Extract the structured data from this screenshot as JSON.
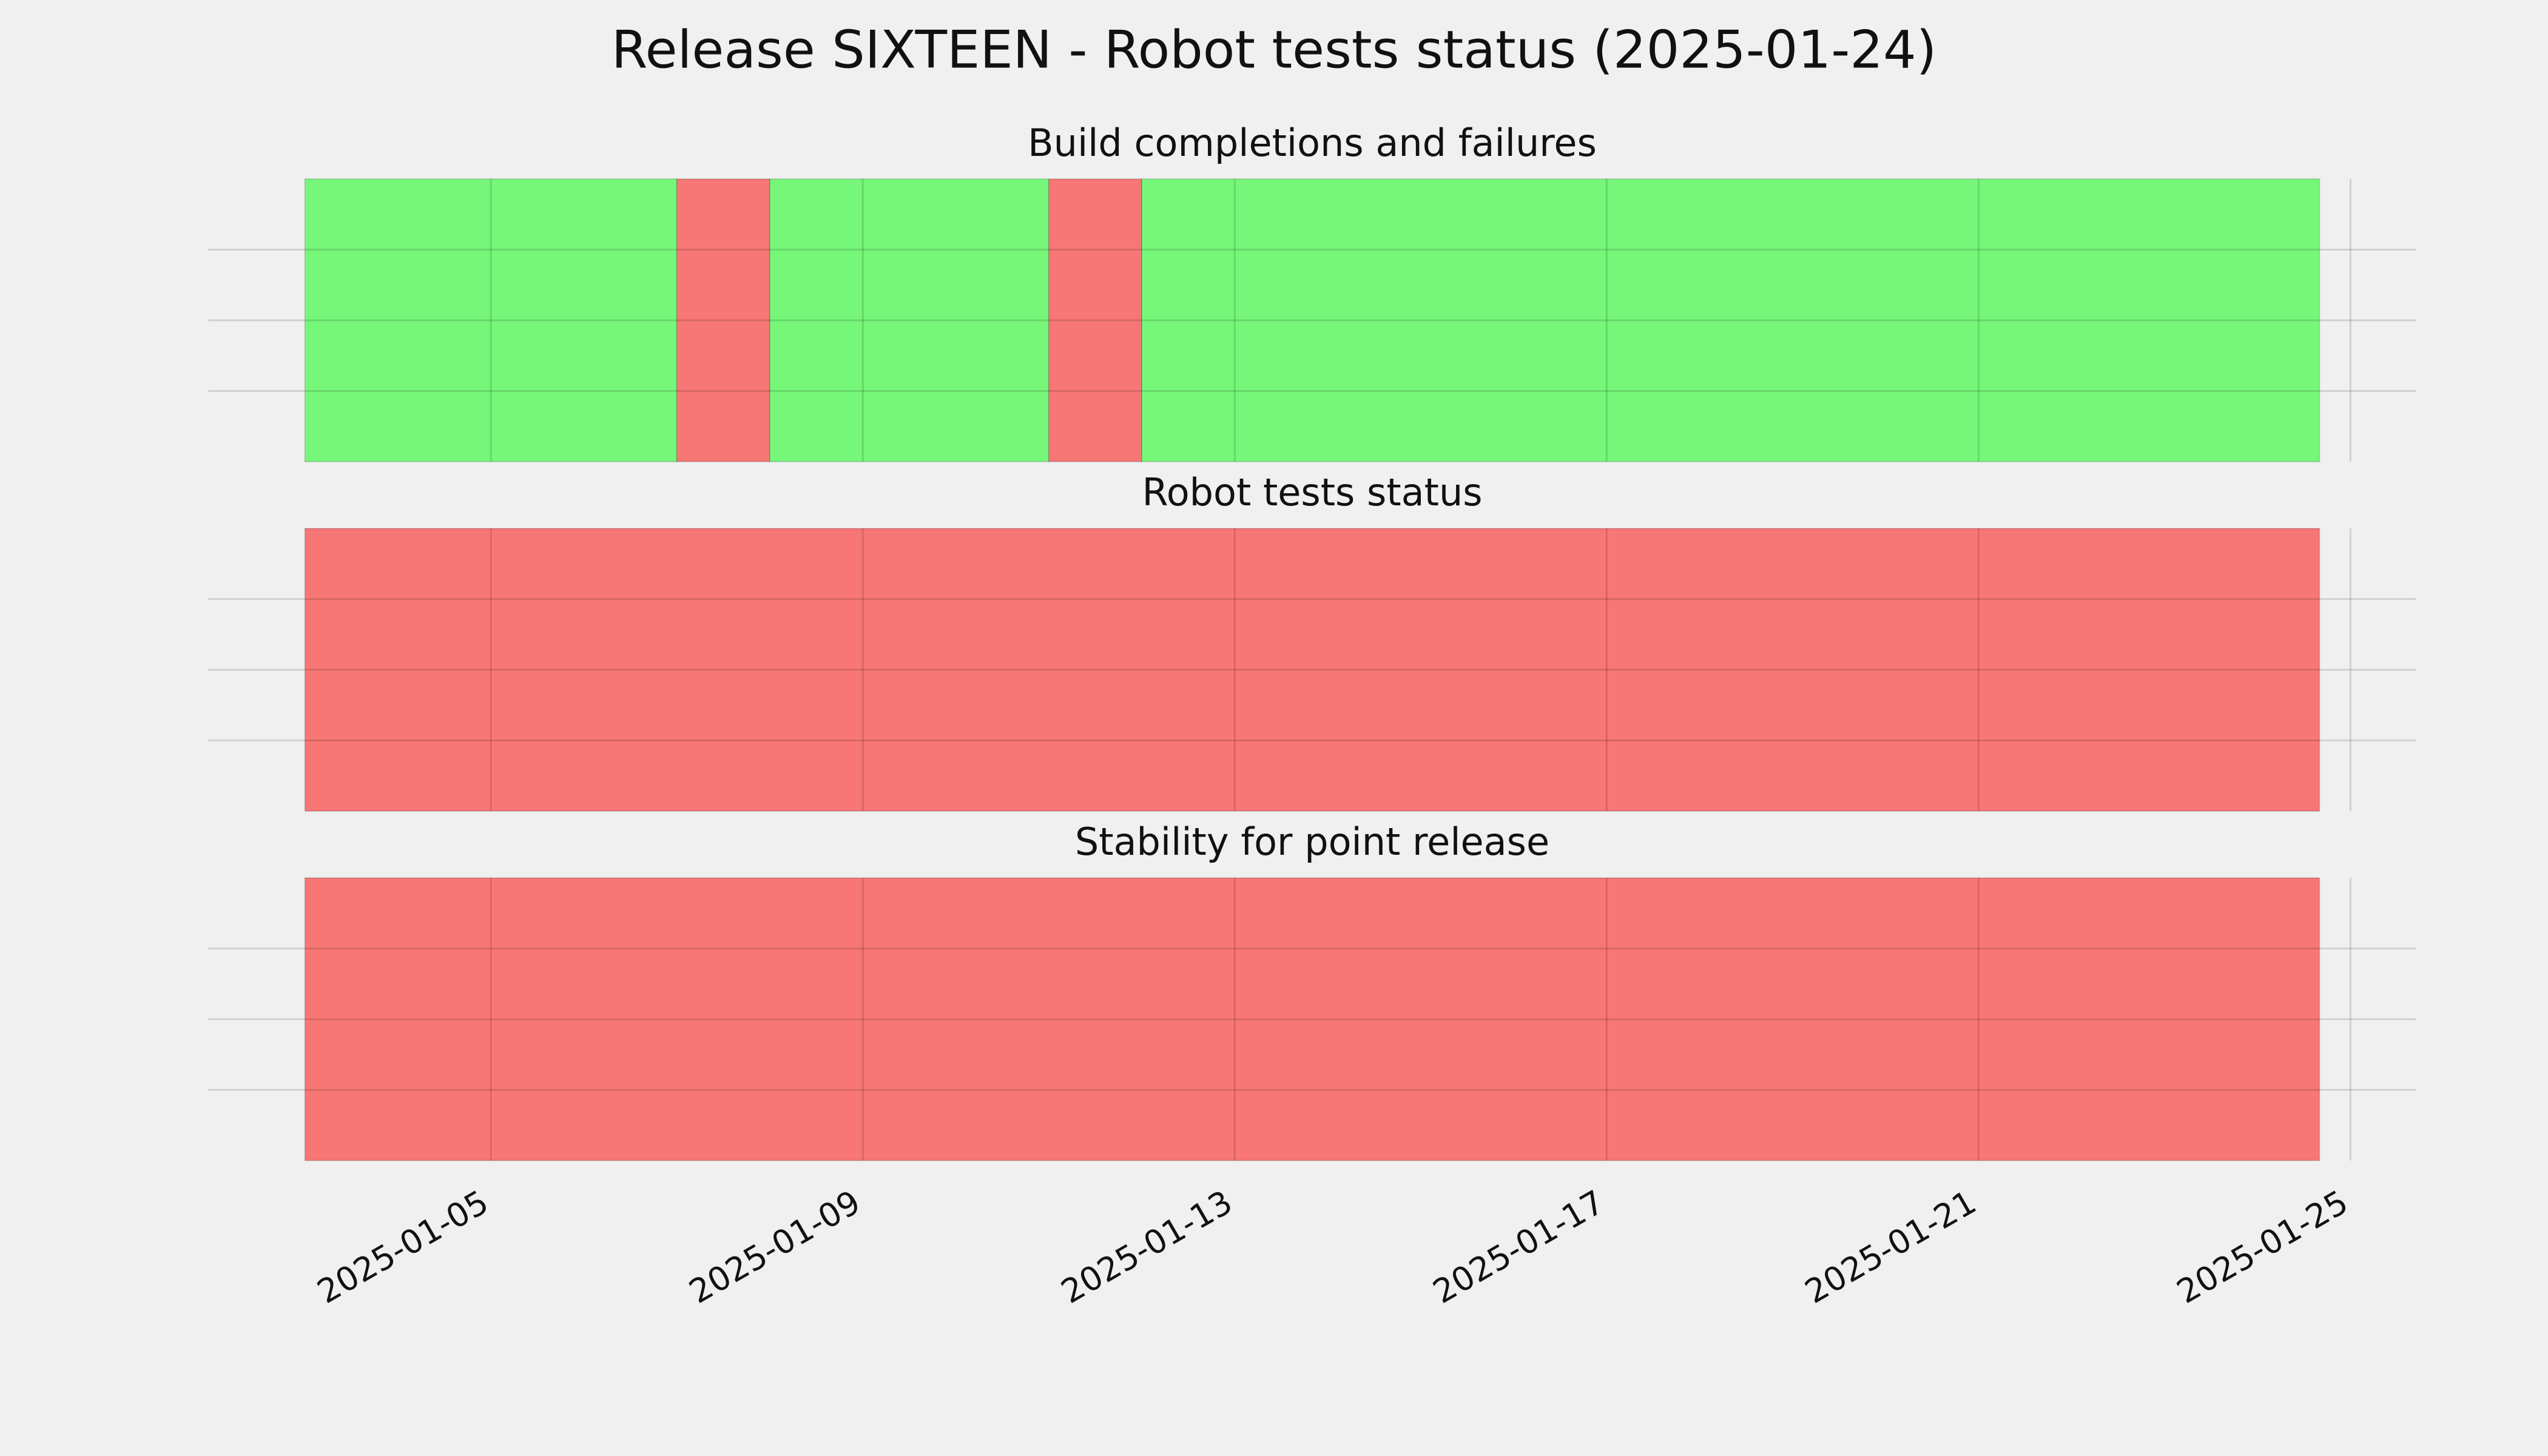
{
  "chart_data": {
    "type": "timeline",
    "title": "Release SIXTEEN - Robot tests status (2025-01-24)",
    "xlim": [
      "2025-01-01T23:00",
      "2025-01-25T17:00"
    ],
    "xticks": [
      "2025-01-05",
      "2025-01-09",
      "2025-01-13",
      "2025-01-17",
      "2025-01-21",
      "2025-01-25"
    ],
    "ylim": [
      0,
      1
    ],
    "yticks": [
      0.25,
      0.5,
      0.75
    ],
    "grid": true,
    "panels": [
      {
        "title": "Build completions and failures",
        "segments": [
          {
            "start": "2025-01-03",
            "end": "2025-01-07",
            "color": "#77f77a"
          },
          {
            "start": "2025-01-07",
            "end": "2025-01-08",
            "color": "#f77776"
          },
          {
            "start": "2025-01-08",
            "end": "2025-01-11",
            "color": "#77f77a"
          },
          {
            "start": "2025-01-11",
            "end": "2025-01-12",
            "color": "#f77776"
          },
          {
            "start": "2025-01-12",
            "end": "2025-01-24T16:00",
            "color": "#77f77a"
          }
        ]
      },
      {
        "title": "Robot tests status",
        "segments": [
          {
            "start": "2025-01-03",
            "end": "2025-01-24T16:00",
            "color": "#f77776"
          }
        ]
      },
      {
        "title": "Stability for point release",
        "segments": [
          {
            "start": "2025-01-03",
            "end": "2025-01-24T16:00",
            "color": "#f77776"
          }
        ]
      }
    ]
  }
}
